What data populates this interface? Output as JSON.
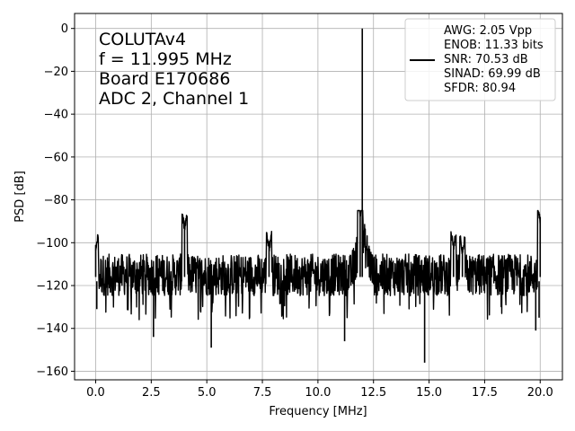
{
  "chart_data": {
    "type": "line",
    "xlabel": "Frequency [MHz]",
    "ylabel": "PSD [dB]",
    "xlim": [
      -0.95,
      21.0
    ],
    "ylim": [
      -164,
      7
    ],
    "xticks": [
      0.0,
      2.5,
      5.0,
      7.5,
      10.0,
      12.5,
      15.0,
      17.5,
      20.0
    ],
    "xtick_labels": [
      "0.0",
      "2.5",
      "5.0",
      "7.5",
      "10.0",
      "12.5",
      "15.0",
      "17.5",
      "20.0"
    ],
    "yticks": [
      0,
      -20,
      -40,
      -60,
      -80,
      -100,
      -120,
      -140,
      -160
    ],
    "ytick_labels": [
      "0",
      "−20",
      "−40",
      "−60",
      "−80",
      "−100",
      "−120",
      "−140",
      "−160"
    ],
    "grid": true,
    "annotation_lines": [
      "COLUTAv4",
      "f = 11.995 MHz",
      "Board E170686",
      "ADC 2, Channel 1"
    ],
    "legend": {
      "placement": "top-right",
      "lines": [
        "AWG: 2.05 Vpp",
        "ENOB: 11.33 bits",
        "SNR: 70.53 dB",
        "SINAD: 69.99 dB",
        "SFDR: 80.94"
      ]
    },
    "series": [
      {
        "color": "#000000",
        "noise_floor_db": -115,
        "noise_band_db": [
          -128,
          -102
        ],
        "x_range": [
          0.0,
          20.0
        ],
        "peaks": [
          {
            "x": 0.0,
            "y": -101
          },
          {
            "x": 4.0,
            "y": -91
          },
          {
            "x": 7.8,
            "y": -101
          },
          {
            "x": 11.995,
            "y": 0
          },
          {
            "x": 11.9,
            "y": -85
          },
          {
            "x": 16.1,
            "y": -100
          },
          {
            "x": 16.5,
            "y": -102
          },
          {
            "x": 20.0,
            "y": -88
          }
        ],
        "dips": [
          {
            "x": 0.05,
            "y": -131
          },
          {
            "x": 2.6,
            "y": -144
          },
          {
            "x": 5.2,
            "y": -149
          },
          {
            "x": 11.2,
            "y": -146
          },
          {
            "x": 14.8,
            "y": -156
          },
          {
            "x": 19.8,
            "y": -141
          },
          {
            "x": 19.95,
            "y": -135
          }
        ]
      }
    ]
  }
}
